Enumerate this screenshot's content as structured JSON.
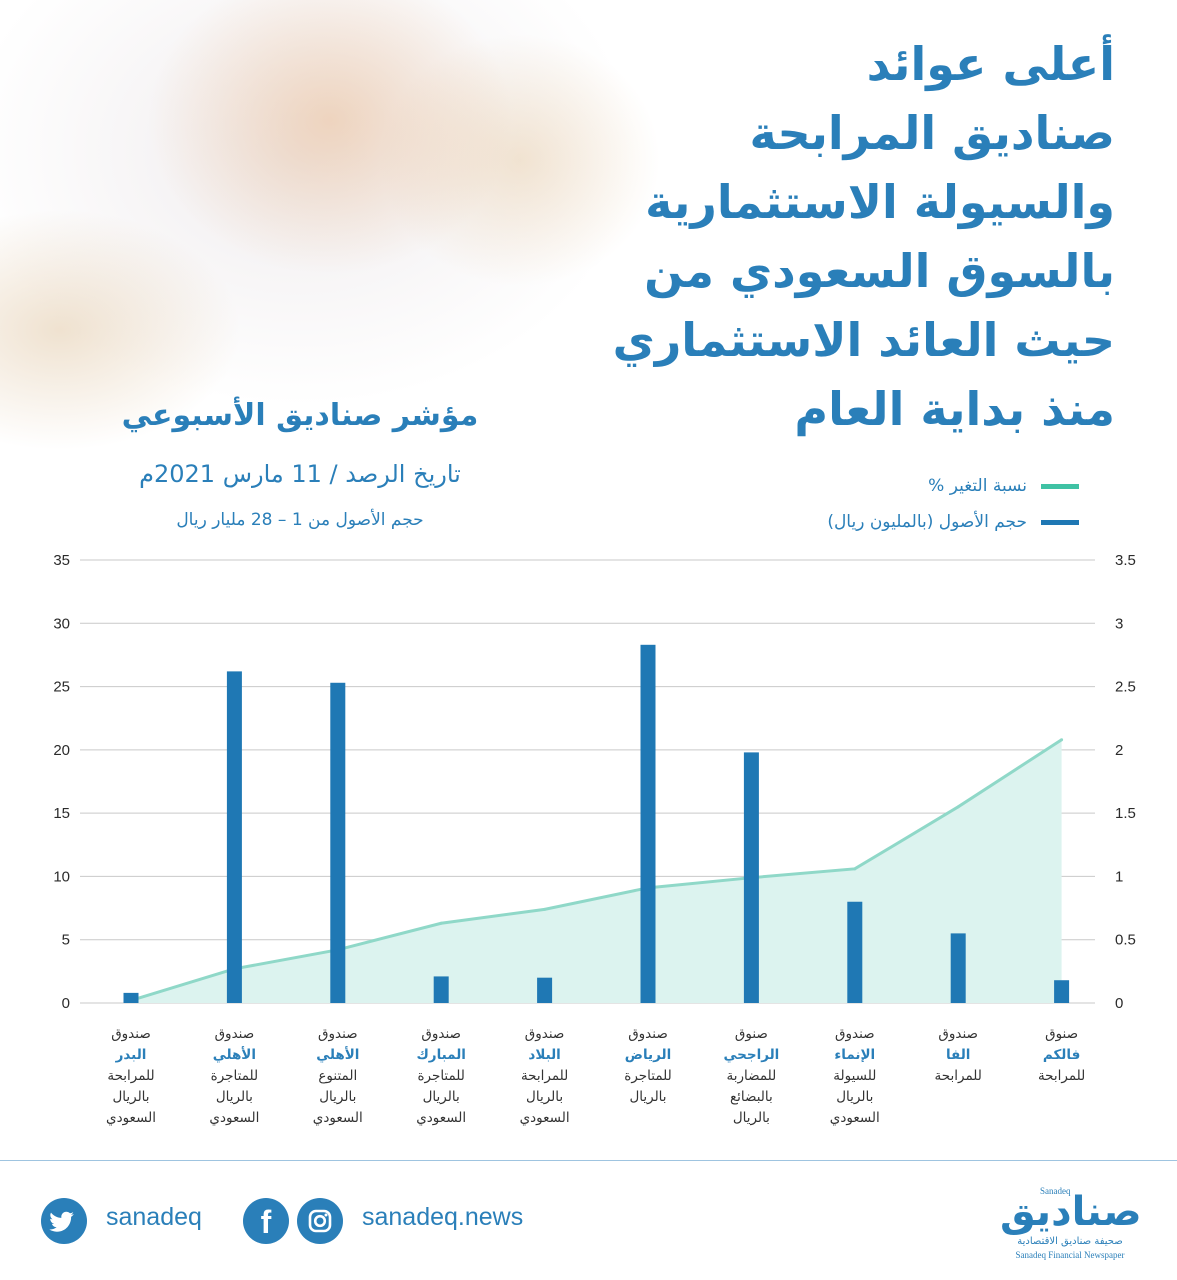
{
  "headline": {
    "lines": [
      "أعلى عوائد",
      "صناديق المرابحة",
      "والسيولة الاستثمارية",
      "بالسوق السعودي من",
      "حيث العائد الاستثماري",
      "منذ بداية العام"
    ]
  },
  "subtitle": {
    "title": "مؤشر صناديق الأسبوعي",
    "date": "تاريخ الرصد / 11 مارس 2021م",
    "asset_range": "حجم الأصول من 1 – 28 مليار ريال"
  },
  "legend": {
    "change_label": "نسبة التغير %",
    "assets_label": "حجم الأصول (بالمليون ريال)"
  },
  "colors": {
    "bar": "#1f78b4",
    "line": "#8fd8c8",
    "area": "#dcf3ef",
    "text_blue": "#2a7fb9"
  },
  "chart_data": {
    "type": "bar",
    "categories": [
      [
        "صندوق",
        "البدر",
        "للمرابحة",
        "بالريال",
        "السعودي"
      ],
      [
        "صندوق",
        "الأهلي",
        "للمتاجرة",
        "بالريال",
        "السعودي"
      ],
      [
        "صندوق",
        "الأهلي",
        "المتنوع",
        "بالريال",
        "السعودي"
      ],
      [
        "صندوق",
        "المبارك",
        "للمتاجرة",
        "بالريال",
        "السعودي"
      ],
      [
        "صندوق",
        "البلاد",
        "للمرابحة",
        "بالريال",
        "السعودي"
      ],
      [
        "صندوق",
        "الرياض",
        "للمتاجرة",
        "بالريال"
      ],
      [
        "صنوق",
        "الراجحي",
        "للمضاربة",
        "بالبضائع",
        "بالريال"
      ],
      [
        "صندوق",
        "الإنماء",
        "للسيولة",
        "بالريال",
        "السعودي"
      ],
      [
        "صندوق",
        "الفا",
        "للمرابحة"
      ],
      [
        "صنوق",
        "فالكم",
        "للمرابحة"
      ]
    ],
    "series": [
      {
        "name": "حجم الأصول (بالمليون ريال)",
        "kind": "bar",
        "axis": "left",
        "values": [
          0.8,
          26.2,
          25.3,
          2.1,
          2.0,
          28.3,
          19.8,
          8.0,
          5.5,
          1.8
        ]
      },
      {
        "name": "نسبة التغير %",
        "kind": "area-line",
        "axis": "right",
        "values": [
          0.02,
          0.27,
          0.42,
          0.63,
          0.74,
          0.91,
          0.99,
          1.06,
          1.55,
          2.08
        ]
      }
    ],
    "y_left": {
      "ylim": [
        0,
        35
      ],
      "ticks": [
        "0",
        "5",
        "10",
        "15",
        "20",
        "25",
        "30",
        "35"
      ]
    },
    "y_right": {
      "ylim": [
        0,
        3.5
      ],
      "ticks": [
        "0",
        "0.5",
        "1",
        "1.5",
        "2",
        "2.5",
        "3",
        "3.5"
      ]
    },
    "grid": true
  },
  "footer": {
    "twitter_handle": "sanadeq",
    "web_handle": "sanadeq.news",
    "logo_ar": "صناديق",
    "logo_en_small": "Sanadeq",
    "tagline_ar": "صحيفة صناديق الاقتصادية",
    "tagline_en": "Sanadeq Financial Newspaper"
  }
}
